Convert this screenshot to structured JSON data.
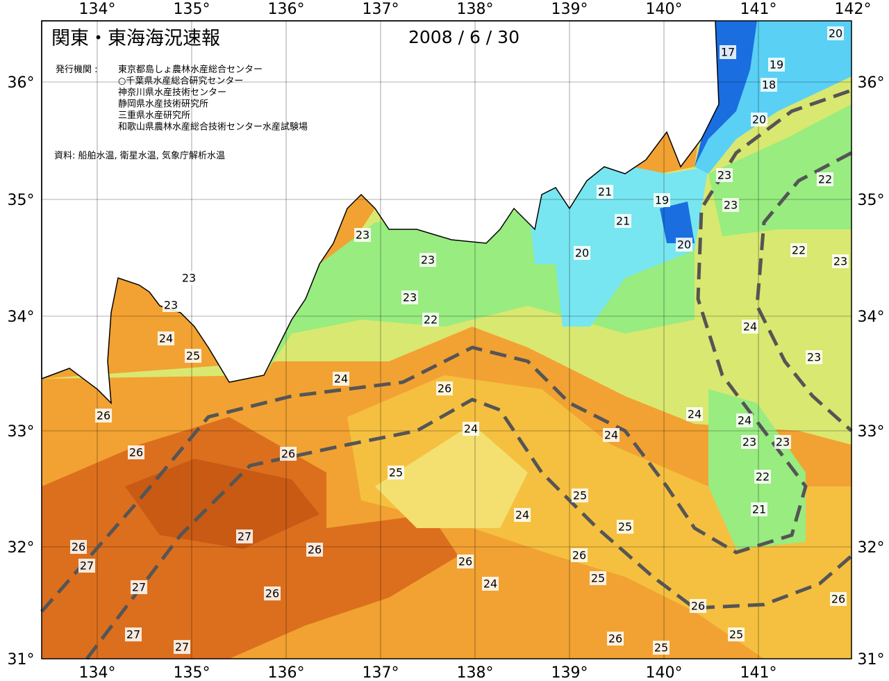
{
  "header": {
    "title": "関東・東海海況速報",
    "date": "2008 / 6 / 30",
    "agency_label": "発行機関 :",
    "agencies": [
      "東京都島しょ農林水産総合センター",
      "○千葉県水産総合研究センター",
      "神奈川県水産技術センター",
      "静岡県水産技術研究所",
      "三重県水産研究所",
      "和歌山県農林水産総合技術センター水産試験場"
    ],
    "source": "資料: 船舶水温, 衛星水温, 気象庁解析水温"
  },
  "axes": {
    "top_lon": [
      "134°",
      "135°",
      "136°",
      "137°",
      "138°",
      "139°",
      "140°",
      "141°",
      "142°"
    ],
    "bottom_lon": [
      "134°",
      "135°",
      "136°",
      "137°",
      "138°",
      "139°",
      "140°",
      "141°"
    ],
    "left_lat": [
      "36°",
      "35°",
      "34°",
      "33°",
      "32°",
      "31°"
    ],
    "right_lat": [
      "36°",
      "35°",
      "34°",
      "33°",
      "32°",
      "31°"
    ]
  },
  "contour_labels": [
    20,
    17,
    19,
    18,
    20,
    23,
    22,
    21,
    19,
    23,
    21,
    23,
    20,
    22,
    23,
    20,
    23,
    23,
    23,
    23,
    22,
    24,
    24,
    25,
    23,
    24,
    26,
    26,
    24,
    24,
    24,
    24,
    23,
    23,
    26,
    26,
    25,
    22,
    25,
    21,
    24,
    25,
    27,
    26,
    26,
    27,
    26,
    26,
    25,
    27,
    24,
    26,
    26,
    26,
    25,
    27,
    26,
    27,
    25
  ]
}
